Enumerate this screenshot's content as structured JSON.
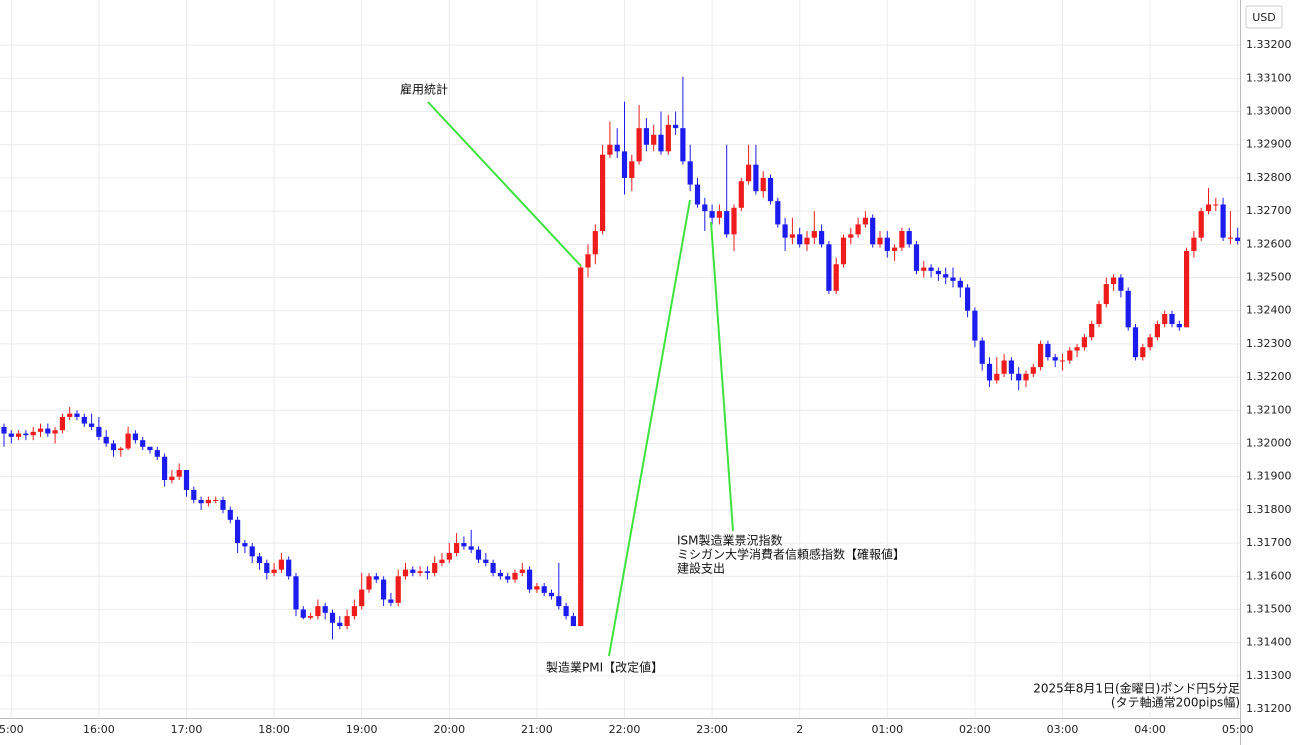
{
  "chart_data": {
    "type": "candlestick",
    "currency": "USD",
    "up_color": "#ee1c1c",
    "down_color": "#1c1cee",
    "grid": true,
    "ylim": [
      1.31173,
      1.33336
    ],
    "yticks": [
      {
        "value": 1.312,
        "label": "1.31200"
      },
      {
        "value": 1.313,
        "label": "1.31300"
      },
      {
        "value": 1.314,
        "label": "1.31400"
      },
      {
        "value": 1.315,
        "label": "1.31500"
      },
      {
        "value": 1.316,
        "label": "1.31600"
      },
      {
        "value": 1.317,
        "label": "1.31700"
      },
      {
        "value": 1.318,
        "label": "1.31800"
      },
      {
        "value": 1.319,
        "label": "1.31900"
      },
      {
        "value": 1.32,
        "label": "1.32000"
      },
      {
        "value": 1.321,
        "label": "1.32100"
      },
      {
        "value": 1.322,
        "label": "1.32200"
      },
      {
        "value": 1.323,
        "label": "1.32300"
      },
      {
        "value": 1.324,
        "label": "1.32400"
      },
      {
        "value": 1.325,
        "label": "1.32500"
      },
      {
        "value": 1.326,
        "label": "1.32600"
      },
      {
        "value": 1.327,
        "label": "1.32700"
      },
      {
        "value": 1.328,
        "label": "1.32800"
      },
      {
        "value": 1.329,
        "label": "1.32900"
      },
      {
        "value": 1.33,
        "label": "1.33000"
      },
      {
        "value": 1.331,
        "label": "1.33100"
      },
      {
        "value": 1.332,
        "label": "1.33200"
      }
    ],
    "categories": [
      null,
      "5:00",
      null,
      null,
      null,
      null,
      null,
      null,
      null,
      null,
      null,
      null,
      null,
      "16:00",
      null,
      null,
      null,
      null,
      null,
      null,
      null,
      null,
      null,
      null,
      null,
      "17:00",
      null,
      null,
      null,
      null,
      null,
      null,
      null,
      null,
      null,
      null,
      null,
      "18:00",
      null,
      null,
      null,
      null,
      null,
      null,
      null,
      null,
      null,
      null,
      null,
      "19:00",
      null,
      null,
      null,
      null,
      null,
      null,
      null,
      null,
      null,
      null,
      null,
      "20:00",
      null,
      null,
      null,
      null,
      null,
      null,
      null,
      null,
      null,
      null,
      null,
      "21:00",
      null,
      null,
      null,
      null,
      null,
      null,
      null,
      null,
      null,
      null,
      null,
      "22:00",
      null,
      null,
      null,
      null,
      null,
      null,
      null,
      null,
      null,
      null,
      null,
      "23:00",
      null,
      null,
      null,
      null,
      null,
      null,
      null,
      null,
      null,
      null,
      null,
      "2",
      null,
      null,
      null,
      null,
      null,
      null,
      null,
      null,
      null,
      null,
      null,
      "01:00",
      null,
      null,
      null,
      null,
      null,
      null,
      null,
      null,
      null,
      null,
      null,
      "02:00",
      null,
      null,
      null,
      null,
      null,
      null,
      null,
      null,
      null,
      null,
      null,
      "03:00",
      null,
      null,
      null,
      null,
      null,
      null,
      null,
      null,
      null,
      null,
      null,
      "04:00",
      null,
      null,
      null,
      null,
      null,
      null,
      null,
      null,
      null,
      null,
      null,
      "05:00"
    ],
    "ohlc": [
      [
        1.3205,
        1.3206,
        1.3199,
        1.3203
      ],
      [
        1.3203,
        1.3204,
        1.32,
        1.3202
      ],
      [
        1.3202,
        1.3204,
        1.3201,
        1.3203
      ],
      [
        1.3203,
        1.3204,
        1.3201,
        1.32025
      ],
      [
        1.32025,
        1.3205,
        1.3201,
        1.32035
      ],
      [
        1.32035,
        1.3206,
        1.3202,
        1.32045
      ],
      [
        1.32045,
        1.3206,
        1.3202,
        1.3203
      ],
      [
        1.3203,
        1.3205,
        1.32,
        1.3204
      ],
      [
        1.3204,
        1.3209,
        1.3203,
        1.3208
      ],
      [
        1.3208,
        1.3211,
        1.3207,
        1.3209
      ],
      [
        1.3209,
        1.321,
        1.3207,
        1.3208
      ],
      [
        1.3208,
        1.3209,
        1.3205,
        1.3206
      ],
      [
        1.3206,
        1.3209,
        1.3204,
        1.3205
      ],
      [
        1.3205,
        1.3208,
        1.3201,
        1.3202
      ],
      [
        1.3202,
        1.3204,
        1.3199,
        1.32
      ],
      [
        1.32,
        1.3201,
        1.3196,
        1.3198
      ],
      [
        1.3198,
        1.3199,
        1.3196,
        1.31985
      ],
      [
        1.31985,
        1.3205,
        1.3198,
        1.3203
      ],
      [
        1.3203,
        1.3204,
        1.32,
        1.3201
      ],
      [
        1.3201,
        1.3202,
        1.3198,
        1.3199
      ],
      [
        1.3199,
        1.3199,
        1.3197,
        1.3198
      ],
      [
        1.3198,
        1.3199,
        1.3195,
        1.3196
      ],
      [
        1.3196,
        1.3197,
        1.3187,
        1.3189
      ],
      [
        1.3189,
        1.3192,
        1.3188,
        1.319
      ],
      [
        1.319,
        1.3194,
        1.3189,
        1.3192
      ],
      [
        1.3192,
        1.3192,
        1.3184,
        1.3186
      ],
      [
        1.3186,
        1.3187,
        1.3182,
        1.3183
      ],
      [
        1.3183,
        1.3184,
        1.318,
        1.3182
      ],
      [
        1.3182,
        1.3184,
        1.3181,
        1.3183
      ],
      [
        1.3183,
        1.3184,
        1.3182,
        1.3183
      ],
      [
        1.3183,
        1.3184,
        1.3179,
        1.318
      ],
      [
        1.318,
        1.3181,
        1.3176,
        1.3177
      ],
      [
        1.3177,
        1.3178,
        1.3167,
        1.317
      ],
      [
        1.317,
        1.3171,
        1.3167,
        1.3169
      ],
      [
        1.3169,
        1.317,
        1.3164,
        1.3166
      ],
      [
        1.3166,
        1.3167,
        1.3162,
        1.3164
      ],
      [
        1.3164,
        1.3165,
        1.3159,
        1.3161
      ],
      [
        1.3161,
        1.3164,
        1.316,
        1.3162
      ],
      [
        1.3162,
        1.3167,
        1.3161,
        1.3165
      ],
      [
        1.3165,
        1.3166,
        1.3159,
        1.316
      ],
      [
        1.316,
        1.3161,
        1.3148,
        1.315
      ],
      [
        1.315,
        1.3151,
        1.3147,
        1.31475
      ],
      [
        1.31475,
        1.3149,
        1.3147,
        1.3148
      ],
      [
        1.3148,
        1.3153,
        1.3147,
        1.3151
      ],
      [
        1.3151,
        1.3152,
        1.3147,
        1.3149
      ],
      [
        1.3149,
        1.315,
        1.3141,
        1.3146
      ],
      [
        1.3146,
        1.3148,
        1.3144,
        1.3145
      ],
      [
        1.3145,
        1.315,
        1.3144,
        1.3148
      ],
      [
        1.3148,
        1.3153,
        1.3147,
        1.3151
      ],
      [
        1.3151,
        1.3161,
        1.315,
        1.3156
      ],
      [
        1.3156,
        1.3161,
        1.3155,
        1.316
      ],
      [
        1.316,
        1.3161,
        1.3158,
        1.3159
      ],
      [
        1.3159,
        1.316,
        1.3151,
        1.3153
      ],
      [
        1.3153,
        1.3155,
        1.3151,
        1.3152
      ],
      [
        1.3152,
        1.3162,
        1.3151,
        1.316
      ],
      [
        1.316,
        1.3164,
        1.3159,
        1.3162
      ],
      [
        1.3162,
        1.3163,
        1.316,
        1.3161
      ],
      [
        1.3161,
        1.3163,
        1.316,
        1.31615
      ],
      [
        1.31615,
        1.3163,
        1.3159,
        1.3161
      ],
      [
        1.3161,
        1.3166,
        1.316,
        1.3164
      ],
      [
        1.3164,
        1.3167,
        1.3163,
        1.3165
      ],
      [
        1.3165,
        1.317,
        1.3164,
        1.3167
      ],
      [
        1.3167,
        1.3173,
        1.3166,
        1.317
      ],
      [
        1.317,
        1.3172,
        1.3168,
        1.3169
      ],
      [
        1.3169,
        1.3174,
        1.3167,
        1.3168
      ],
      [
        1.3168,
        1.3169,
        1.3164,
        1.3165
      ],
      [
        1.3165,
        1.3167,
        1.3163,
        1.3164
      ],
      [
        1.3164,
        1.3165,
        1.316,
        1.3161
      ],
      [
        1.3161,
        1.3162,
        1.3159,
        1.316
      ],
      [
        1.316,
        1.3161,
        1.3158,
        1.3159
      ],
      [
        1.3159,
        1.3162,
        1.3158,
        1.3161
      ],
      [
        1.3161,
        1.3164,
        1.316,
        1.3162
      ],
      [
        1.3162,
        1.3163,
        1.3155,
        1.3156
      ],
      [
        1.3156,
        1.3158,
        1.3155,
        1.3157
      ],
      [
        1.3157,
        1.3158,
        1.3154,
        1.3155
      ],
      [
        1.3155,
        1.3156,
        1.3153,
        1.3154
      ],
      [
        1.3154,
        1.3164,
        1.315,
        1.3151
      ],
      [
        1.3151,
        1.3152,
        1.3147,
        1.3148
      ],
      [
        1.3148,
        1.3149,
        1.3145,
        1.3145
      ],
      [
        1.3145,
        1.3254,
        1.3145,
        1.3253
      ],
      [
        1.3253,
        1.326,
        1.325,
        1.3257
      ],
      [
        1.3257,
        1.3266,
        1.3254,
        1.3264
      ],
      [
        1.3264,
        1.329,
        1.3263,
        1.3287
      ],
      [
        1.3287,
        1.3297,
        1.3286,
        1.329
      ],
      [
        1.329,
        1.3295,
        1.3286,
        1.3288
      ],
      [
        1.3288,
        1.3303,
        1.3275,
        1.328
      ],
      [
        1.328,
        1.3287,
        1.3276,
        1.3285
      ],
      [
        1.3285,
        1.3302,
        1.3284,
        1.3295
      ],
      [
        1.3295,
        1.3298,
        1.3288,
        1.329
      ],
      [
        1.329,
        1.3296,
        1.3288,
        1.3293
      ],
      [
        1.3293,
        1.33,
        1.3287,
        1.3288
      ],
      [
        1.3288,
        1.3299,
        1.3287,
        1.3296
      ],
      [
        1.3296,
        1.33,
        1.3293,
        1.3295
      ],
      [
        1.3295,
        1.33105,
        1.3284,
        1.3285
      ],
      [
        1.3285,
        1.329,
        1.3276,
        1.3278
      ],
      [
        1.3278,
        1.328,
        1.3271,
        1.3272
      ],
      [
        1.3272,
        1.3274,
        1.3264,
        1.327
      ],
      [
        1.327,
        1.3272,
        1.3266,
        1.3268
      ],
      [
        1.3268,
        1.3272,
        1.3266,
        1.327
      ],
      [
        1.327,
        1.329,
        1.3262,
        1.3263
      ],
      [
        1.3263,
        1.3272,
        1.3258,
        1.3271
      ],
      [
        1.3271,
        1.328,
        1.327,
        1.3279
      ],
      [
        1.3279,
        1.329,
        1.3278,
        1.3284
      ],
      [
        1.3284,
        1.329,
        1.3275,
        1.3276
      ],
      [
        1.3276,
        1.3282,
        1.3274,
        1.328
      ],
      [
        1.328,
        1.3281,
        1.3272,
        1.3273
      ],
      [
        1.3273,
        1.3274,
        1.3265,
        1.3266
      ],
      [
        1.3266,
        1.3268,
        1.3258,
        1.3262
      ],
      [
        1.3262,
        1.3268,
        1.326,
        1.3263
      ],
      [
        1.3263,
        1.3265,
        1.3259,
        1.326
      ],
      [
        1.326,
        1.3264,
        1.3258,
        1.3262
      ],
      [
        1.3262,
        1.327,
        1.326,
        1.3264
      ],
      [
        1.3264,
        1.3266,
        1.3259,
        1.326
      ],
      [
        1.326,
        1.3261,
        1.3245,
        1.3246
      ],
      [
        1.3246,
        1.3256,
        1.3245,
        1.3254
      ],
      [
        1.3254,
        1.3263,
        1.3253,
        1.3262
      ],
      [
        1.3262,
        1.3265,
        1.326,
        1.3263
      ],
      [
        1.3263,
        1.3268,
        1.3262,
        1.3266
      ],
      [
        1.3266,
        1.327,
        1.3265,
        1.3268
      ],
      [
        1.3268,
        1.3269,
        1.3259,
        1.326
      ],
      [
        1.326,
        1.3264,
        1.3259,
        1.3262
      ],
      [
        1.3262,
        1.3264,
        1.3256,
        1.3258
      ],
      [
        1.3258,
        1.326,
        1.3255,
        1.3259
      ],
      [
        1.3259,
        1.3265,
        1.3258,
        1.3264
      ],
      [
        1.3264,
        1.3265,
        1.3259,
        1.326
      ],
      [
        1.326,
        1.3261,
        1.3251,
        1.3252
      ],
      [
        1.3252,
        1.3255,
        1.325,
        1.3253
      ],
      [
        1.3253,
        1.3254,
        1.325,
        1.3252
      ],
      [
        1.3252,
        1.3253,
        1.3249,
        1.3251
      ],
      [
        1.3251,
        1.3253,
        1.3248,
        1.325
      ],
      [
        1.325,
        1.3253,
        1.3247,
        1.3249
      ],
      [
        1.3249,
        1.325,
        1.3244,
        1.3247
      ],
      [
        1.3247,
        1.3248,
        1.3238,
        1.324
      ],
      [
        1.324,
        1.3241,
        1.3229,
        1.3231
      ],
      [
        1.3231,
        1.3232,
        1.3222,
        1.3224
      ],
      [
        1.3224,
        1.3226,
        1.3217,
        1.3219
      ],
      [
        1.3219,
        1.3226,
        1.3218,
        1.3221
      ],
      [
        1.3221,
        1.3227,
        1.322,
        1.3225
      ],
      [
        1.3225,
        1.3226,
        1.3219,
        1.3221
      ],
      [
        1.3221,
        1.3223,
        1.3216,
        1.3219
      ],
      [
        1.3219,
        1.3222,
        1.3217,
        1.3221
      ],
      [
        1.3221,
        1.3224,
        1.322,
        1.3223
      ],
      [
        1.3223,
        1.3231,
        1.3222,
        1.323
      ],
      [
        1.323,
        1.3231,
        1.3225,
        1.3226
      ],
      [
        1.3226,
        1.3227,
        1.3223,
        1.3225
      ],
      [
        1.3225,
        1.3227,
        1.3222,
        1.3225
      ],
      [
        1.3225,
        1.3229,
        1.3224,
        1.3228
      ],
      [
        1.3228,
        1.323,
        1.3226,
        1.3229
      ],
      [
        1.3229,
        1.3233,
        1.3228,
        1.3232
      ],
      [
        1.3232,
        1.3237,
        1.3231,
        1.3236
      ],
      [
        1.3236,
        1.3243,
        1.3235,
        1.3242
      ],
      [
        1.3242,
        1.325,
        1.3241,
        1.3248
      ],
      [
        1.3248,
        1.3251,
        1.3246,
        1.325
      ],
      [
        1.325,
        1.3251,
        1.3244,
        1.3246
      ],
      [
        1.3246,
        1.3247,
        1.3234,
        1.3235
      ],
      [
        1.3235,
        1.3236,
        1.3225,
        1.3226
      ],
      [
        1.3226,
        1.323,
        1.3225,
        1.3229
      ],
      [
        1.3229,
        1.3233,
        1.3228,
        1.3232
      ],
      [
        1.3232,
        1.3237,
        1.3231,
        1.3236
      ],
      [
        1.3236,
        1.324,
        1.3235,
        1.3239
      ],
      [
        1.3239,
        1.324,
        1.3235,
        1.3236
      ],
      [
        1.3236,
        1.3237,
        1.3234,
        1.3235
      ],
      [
        1.3235,
        1.3259,
        1.3235,
        1.3258
      ],
      [
        1.3258,
        1.3264,
        1.3256,
        1.3262
      ],
      [
        1.3262,
        1.3271,
        1.3261,
        1.327
      ],
      [
        1.327,
        1.3277,
        1.3269,
        1.3272
      ],
      [
        1.3272,
        1.3274,
        1.327,
        1.3272
      ],
      [
        1.3272,
        1.3274,
        1.3261,
        1.3262
      ],
      [
        1.3262,
        1.327,
        1.326,
        1.3262
      ],
      [
        1.3262,
        1.3265,
        1.326,
        1.3261
      ]
    ],
    "annotations": [
      {
        "lines": [
          "雇用統計"
        ]
      },
      {
        "lines": [
          "ISM製造業景況指数",
          "ミシガン大学消費者信頼感指数【確報値】",
          "建設支出"
        ]
      },
      {
        "lines": [
          "製造業PMI【改定値】"
        ]
      }
    ],
    "note": [
      "2025年8月1日(金曜日)ポンド円5分足",
      "(タテ軸通常200pips幅)"
    ]
  }
}
